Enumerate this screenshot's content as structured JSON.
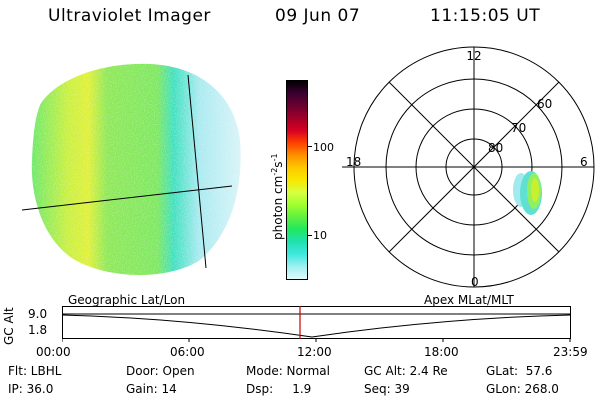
{
  "header": {
    "title": "Ultraviolet Imager",
    "date": "09 Jun 07",
    "time": "11:15:05 UT"
  },
  "colorbar": {
    "unit_label": "photon cm",
    "unit_exp1": "-2",
    "unit_s": "s",
    "unit_exp2": "-1",
    "ticks": [
      "100",
      "10"
    ],
    "colors": [
      "#000000",
      "#3a0030",
      "#6a0030",
      "#a00028",
      "#d80020",
      "#ff4000",
      "#ff9000",
      "#ffc800",
      "#f8e800",
      "#d8ff40",
      "#a0ff30",
      "#60f040",
      "#20e860",
      "#20e0b0",
      "#40e8e0",
      "#a0f0f0",
      "#e0fafa"
    ]
  },
  "polar_plot": {
    "mlt_labels": [
      "12",
      "18",
      "6",
      "0"
    ],
    "lat_labels": [
      "60",
      "70",
      "80"
    ]
  },
  "timeline": {
    "left_label": "Geographic Lat/Lon",
    "right_label": "Apex MLat/MLT",
    "axis_title": "GC Alt",
    "y_ticks": [
      "9.0",
      "1.8"
    ],
    "x_ticks": [
      "00:00",
      "06:00",
      "12:00",
      "18:00",
      "23:59"
    ],
    "marker_color": "#cc0000"
  },
  "info": {
    "flt": "Flt: LBHL",
    "door": "Door: Open",
    "mode": "Mode: Normal",
    "gcalt": "GC Alt: 2.4 Re",
    "glat": "GLat:  57.6",
    "ip": "IP: 36.0",
    "gain": "Gain: 14",
    "dsp": "Dsp:     1.9",
    "seq": "Seq: 39",
    "glon": "GLon: 268.0"
  }
}
